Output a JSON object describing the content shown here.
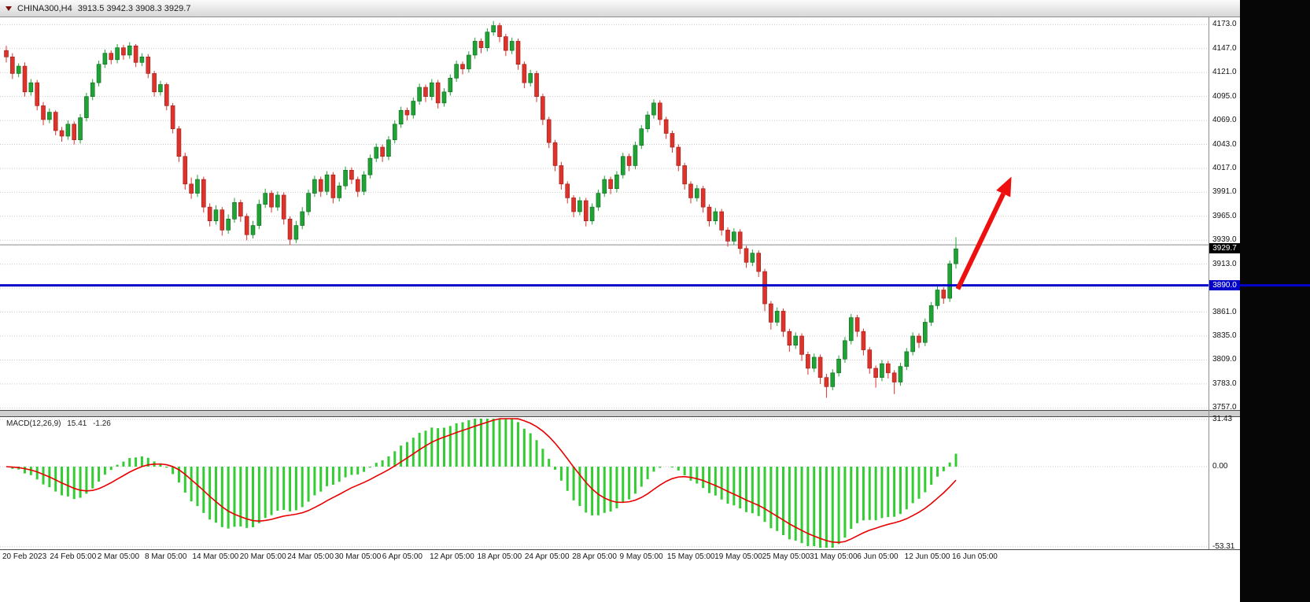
{
  "window": {
    "symbol": "CHINA300,H4",
    "ohlc_text": "3913.5 3942.3 3908.3 3929.7"
  },
  "colors": {
    "bull": "#1ea334",
    "bull_border": "#11651f",
    "bear": "#df322b",
    "bear_border": "#92201a",
    "hist": "#33cc33",
    "signal": "#e80000",
    "hline": "#0202c8",
    "resistance": "#8a8a8a",
    "arrow": "#ee0f0f",
    "grid": "#c9c9c9",
    "tag_bid_bg": "#000000",
    "tag_hline_bg": "#0202c8"
  },
  "chart_data": {
    "type": "candlestick",
    "symbol": "CHINA300",
    "timeframe": "H4",
    "current_bar": {
      "open": 3913.5,
      "high": 3942.3,
      "low": 3908.3,
      "close": 3929.7
    },
    "ylim": [
      3753,
      4181
    ],
    "price_gridlines": [
      3757,
      3783,
      3809,
      3835,
      3861,
      3887,
      3913,
      3939,
      3965,
      3991,
      4017,
      4043,
      4069,
      4095,
      4121,
      4147,
      4173
    ],
    "price_labels": [
      "4173.0",
      "4147.0",
      "4121.0",
      "4095.0",
      "4069.0",
      "4043.0",
      "4017.0",
      "3991.0",
      "3965.0",
      "3939.0",
      "3913.0",
      "3861.0",
      "3835.0",
      "3809.0",
      "3783.0",
      "3757.0"
    ],
    "bid_tag": {
      "value": 3929.7,
      "label": "3929.7"
    },
    "hline": {
      "value": 3890.0,
      "label": "3890.0"
    },
    "resistance_line": {
      "value": 3934.0
    },
    "arrow": {
      "from_index": 154.3,
      "from_price": 3886,
      "to_index": 163,
      "to_price": 4008
    },
    "macd": {
      "title": "MACD(12,26,9)",
      "value_text": "15.41",
      "signal_text": "-1.26",
      "params": [
        12,
        26,
        9
      ],
      "ylim": [
        -55,
        33
      ],
      "axis_labels": [
        "31.43",
        "0.00",
        "-53.31"
      ]
    },
    "time_labels": [
      "20 Feb 2023",
      "24 Feb 05:00",
      "2 Mar 05:00",
      "8 Mar 05:00",
      "14 Mar 05:00",
      "20 Mar 05:00",
      "24 Mar 05:00",
      "30 Mar 05:00",
      "6 Apr 05:00",
      "12 Apr 05:00",
      "18 Apr 05:00",
      "24 Apr 05:00",
      "28 Apr 05:00",
      "9 May 05:00",
      "15 May 05:00",
      "19 May 05:00",
      "25 May 05:00",
      "31 May 05:00",
      "6 Jun 05:00",
      "12 Jun 05:00",
      "16 Jun 05:00"
    ],
    "candles": [
      [
        4145,
        4150,
        4132,
        4138
      ],
      [
        4138,
        4142,
        4114,
        4120
      ],
      [
        4120,
        4131,
        4116,
        4128
      ],
      [
        4128,
        4132,
        4095,
        4100
      ],
      [
        4100,
        4114,
        4096,
        4110
      ],
      [
        4110,
        4113,
        4080,
        4085
      ],
      [
        4085,
        4089,
        4064,
        4070
      ],
      [
        4070,
        4082,
        4066,
        4078
      ],
      [
        4078,
        4080,
        4053,
        4058
      ],
      [
        4058,
        4062,
        4046,
        4052
      ],
      [
        4052,
        4069,
        4048,
        4065
      ],
      [
        4065,
        4068,
        4043,
        4048
      ],
      [
        4048,
        4076,
        4044,
        4072
      ],
      [
        4072,
        4099,
        4068,
        4095
      ],
      [
        4095,
        4114,
        4091,
        4110
      ],
      [
        4110,
        4134,
        4106,
        4130
      ],
      [
        4130,
        4146,
        4126,
        4142
      ],
      [
        4142,
        4145,
        4130,
        4135
      ],
      [
        4135,
        4152,
        4131,
        4148
      ],
      [
        4148,
        4151,
        4135,
        4140
      ],
      [
        4140,
        4154,
        4136,
        4150
      ],
      [
        4150,
        4152,
        4127,
        4132
      ],
      [
        4132,
        4142,
        4128,
        4138
      ],
      [
        4138,
        4141,
        4115,
        4120
      ],
      [
        4120,
        4123,
        4095,
        4100
      ],
      [
        4100,
        4112,
        4096,
        4108
      ],
      [
        4108,
        4110,
        4080,
        4085
      ],
      [
        4085,
        4088,
        4055,
        4060
      ],
      [
        4060,
        4063,
        4024,
        4030
      ],
      [
        4030,
        4034,
        3994,
        4000
      ],
      [
        4000,
        4007,
        3984,
        3990
      ],
      [
        3990,
        4010,
        3986,
        4005
      ],
      [
        4005,
        4008,
        3969,
        3975
      ],
      [
        3975,
        3979,
        3954,
        3960
      ],
      [
        3960,
        3977,
        3956,
        3972
      ],
      [
        3972,
        3975,
        3944,
        3950
      ],
      [
        3950,
        3967,
        3946,
        3962
      ],
      [
        3962,
        3985,
        3958,
        3980
      ],
      [
        3980,
        3983,
        3959,
        3965
      ],
      [
        3965,
        3968,
        3939,
        3945
      ],
      [
        3945,
        3960,
        3941,
        3955
      ],
      [
        3955,
        3983,
        3951,
        3978
      ],
      [
        3978,
        3995,
        3974,
        3990
      ],
      [
        3990,
        3993,
        3969,
        3975
      ],
      [
        3975,
        3992,
        3971,
        3988
      ],
      [
        3988,
        3991,
        3956,
        3962
      ],
      [
        3962,
        3965,
        3934,
        3940
      ],
      [
        3940,
        3960,
        3936,
        3955
      ],
      [
        3955,
        3975,
        3951,
        3970
      ],
      [
        3970,
        3994,
        3966,
        3990
      ],
      [
        3990,
        4009,
        3986,
        4005
      ],
      [
        4005,
        4008,
        3986,
        3992
      ],
      [
        3992,
        4014,
        3988,
        4010
      ],
      [
        4010,
        4013,
        3979,
        3985
      ],
      [
        3985,
        4002,
        3981,
        3998
      ],
      [
        3998,
        4019,
        3994,
        4015
      ],
      [
        4015,
        4018,
        4000,
        4005
      ],
      [
        4005,
        4008,
        3986,
        3992
      ],
      [
        3992,
        4014,
        3988,
        4010
      ],
      [
        4010,
        4032,
        4006,
        4028
      ],
      [
        4028,
        4044,
        4024,
        4040
      ],
      [
        4040,
        4043,
        4024,
        4030
      ],
      [
        4030,
        4052,
        4026,
        4048
      ],
      [
        4048,
        4069,
        4044,
        4065
      ],
      [
        4065,
        4084,
        4061,
        4080
      ],
      [
        4080,
        4083,
        4069,
        4075
      ],
      [
        4075,
        4094,
        4071,
        4090
      ],
      [
        4090,
        4109,
        4086,
        4105
      ],
      [
        4105,
        4108,
        4089,
        4095
      ],
      [
        4095,
        4114,
        4091,
        4110
      ],
      [
        4110,
        4113,
        4082,
        4088
      ],
      [
        4088,
        4104,
        4084,
        4100
      ],
      [
        4100,
        4119,
        4096,
        4115
      ],
      [
        4115,
        4134,
        4111,
        4130
      ],
      [
        4130,
        4133,
        4119,
        4125
      ],
      [
        4125,
        4144,
        4121,
        4140
      ],
      [
        4140,
        4159,
        4136,
        4155
      ],
      [
        4155,
        4158,
        4142,
        4148
      ],
      [
        4148,
        4169,
        4144,
        4165
      ],
      [
        4165,
        4177,
        4161,
        4172
      ],
      [
        4172,
        4175,
        4154,
        4160
      ],
      [
        4160,
        4163,
        4139,
        4145
      ],
      [
        4145,
        4159,
        4141,
        4155
      ],
      [
        4155,
        4158,
        4124,
        4130
      ],
      [
        4130,
        4133,
        4104,
        4110
      ],
      [
        4110,
        4124,
        4106,
        4120
      ],
      [
        4120,
        4123,
        4089,
        4095
      ],
      [
        4095,
        4098,
        4064,
        4070
      ],
      [
        4070,
        4073,
        4039,
        4045
      ],
      [
        4045,
        4048,
        4014,
        4020
      ],
      [
        4020,
        4024,
        3994,
        4000
      ],
      [
        4000,
        4003,
        3979,
        3985
      ],
      [
        3985,
        3988,
        3964,
        3970
      ],
      [
        3970,
        3986,
        3966,
        3982
      ],
      [
        3982,
        3985,
        3954,
        3960
      ],
      [
        3960,
        3979,
        3956,
        3975
      ],
      [
        3975,
        3994,
        3971,
        3990
      ],
      [
        3990,
        4009,
        3986,
        4005
      ],
      [
        4005,
        4008,
        3989,
        3995
      ],
      [
        3995,
        4014,
        3991,
        4010
      ],
      [
        4010,
        4034,
        4006,
        4030
      ],
      [
        4030,
        4033,
        4014,
        4020
      ],
      [
        4020,
        4046,
        4016,
        4042
      ],
      [
        4042,
        4064,
        4038,
        4060
      ],
      [
        4060,
        4079,
        4056,
        4075
      ],
      [
        4075,
        4092,
        4071,
        4088
      ],
      [
        4088,
        4091,
        4064,
        4070
      ],
      [
        4070,
        4073,
        4049,
        4055
      ],
      [
        4055,
        4058,
        4034,
        4040
      ],
      [
        4040,
        4043,
        4014,
        4020
      ],
      [
        4020,
        4023,
        3994,
        4000
      ],
      [
        4000,
        4003,
        3979,
        3985
      ],
      [
        3985,
        3999,
        3981,
        3995
      ],
      [
        3995,
        3998,
        3969,
        3975
      ],
      [
        3975,
        3978,
        3954,
        3960
      ],
      [
        3960,
        3974,
        3956,
        3970
      ],
      [
        3970,
        3973,
        3944,
        3950
      ],
      [
        3950,
        3953,
        3932,
        3938
      ],
      [
        3938,
        3952,
        3934,
        3948
      ],
      [
        3948,
        3951,
        3924,
        3930
      ],
      [
        3930,
        3933,
        3909,
        3915
      ],
      [
        3915,
        3929,
        3911,
        3925
      ],
      [
        3925,
        3928,
        3899,
        3905
      ],
      [
        3905,
        3908,
        3862,
        3870
      ],
      [
        3870,
        3873,
        3842,
        3850
      ],
      [
        3850,
        3866,
        3846,
        3862
      ],
      [
        3862,
        3865,
        3834,
        3840
      ],
      [
        3840,
        3843,
        3818,
        3825
      ],
      [
        3825,
        3839,
        3821,
        3835
      ],
      [
        3835,
        3838,
        3808,
        3815
      ],
      [
        3815,
        3818,
        3793,
        3800
      ],
      [
        3800,
        3816,
        3796,
        3812
      ],
      [
        3812,
        3815,
        3783,
        3790
      ],
      [
        3790,
        3794,
        3768,
        3780
      ],
      [
        3780,
        3799,
        3776,
        3795
      ],
      [
        3795,
        3814,
        3791,
        3810
      ],
      [
        3810,
        3834,
        3806,
        3830
      ],
      [
        3830,
        3859,
        3826,
        3855
      ],
      [
        3855,
        3858,
        3834,
        3840
      ],
      [
        3840,
        3843,
        3814,
        3820
      ],
      [
        3820,
        3823,
        3794,
        3800
      ],
      [
        3800,
        3803,
        3779,
        3790
      ],
      [
        3790,
        3809,
        3786,
        3805
      ],
      [
        3805,
        3808,
        3789,
        3795
      ],
      [
        3795,
        3798,
        3772,
        3785
      ],
      [
        3785,
        3806,
        3781,
        3802
      ],
      [
        3802,
        3822,
        3798,
        3818
      ],
      [
        3818,
        3839,
        3814,
        3835
      ],
      [
        3835,
        3838,
        3822,
        3828
      ],
      [
        3828,
        3854,
        3824,
        3850
      ],
      [
        3850,
        3872,
        3846,
        3868
      ],
      [
        3868,
        3889,
        3864,
        3885
      ],
      [
        3885,
        3888,
        3870,
        3876
      ],
      [
        3876,
        3917,
        3872,
        3913.5
      ],
      [
        3913.5,
        3942.3,
        3908.3,
        3929.7
      ]
    ]
  }
}
